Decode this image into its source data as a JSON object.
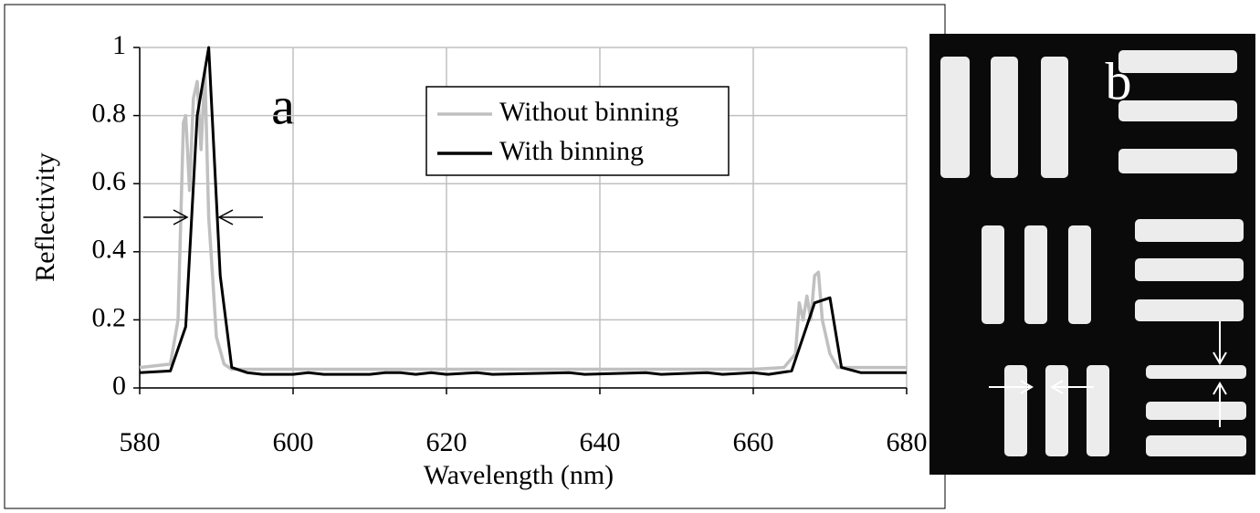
{
  "chart_data": {
    "type": "line",
    "annotations": [
      "a",
      "b"
    ],
    "x_label": "Wavelength (nm)",
    "y_label": "Reflectivity",
    "xlim": [
      580,
      680
    ],
    "xticks": [
      580,
      600,
      620,
      640,
      660,
      680
    ],
    "ylim": [
      0,
      1
    ],
    "yticks": [
      0,
      0.2,
      0.4,
      0.6,
      0.8,
      1
    ],
    "grid": true,
    "legend": "upper center",
    "series": [
      {
        "name": "Without binning",
        "color": "#c0c0c0",
        "x": [
          580,
          584,
          585,
          585.7,
          586,
          586.5,
          587,
          587.5,
          588,
          588.5,
          589,
          589.5,
          590,
          591,
          592,
          600,
          620,
          640,
          660,
          664,
          665.5,
          666,
          666.5,
          667,
          667.5,
          668,
          668.5,
          669,
          670,
          671,
          680
        ],
        "values": [
          0.06,
          0.07,
          0.2,
          0.78,
          0.8,
          0.58,
          0.85,
          0.9,
          0.7,
          0.93,
          0.5,
          0.33,
          0.15,
          0.07,
          0.055,
          0.055,
          0.055,
          0.055,
          0.055,
          0.06,
          0.1,
          0.25,
          0.2,
          0.27,
          0.2,
          0.33,
          0.34,
          0.2,
          0.1,
          0.06,
          0.06
        ]
      },
      {
        "name": "With binning",
        "color": "#000000",
        "x": [
          580,
          584,
          586,
          587.5,
          589,
          590.5,
          592,
          594,
          596,
          600,
          602,
          604,
          610,
          612,
          614,
          616,
          618,
          620,
          624,
          626,
          636,
          638,
          646,
          648,
          654,
          656,
          660,
          662,
          665,
          668,
          670,
          671.5,
          674,
          680
        ],
        "values": [
          0.045,
          0.05,
          0.18,
          0.8,
          1.0,
          0.33,
          0.06,
          0.045,
          0.04,
          0.04,
          0.045,
          0.04,
          0.04,
          0.045,
          0.045,
          0.04,
          0.045,
          0.04,
          0.045,
          0.04,
          0.045,
          0.04,
          0.045,
          0.04,
          0.045,
          0.04,
          0.045,
          0.04,
          0.05,
          0.25,
          0.265,
          0.06,
          0.045,
          0.045
        ]
      }
    ]
  }
}
